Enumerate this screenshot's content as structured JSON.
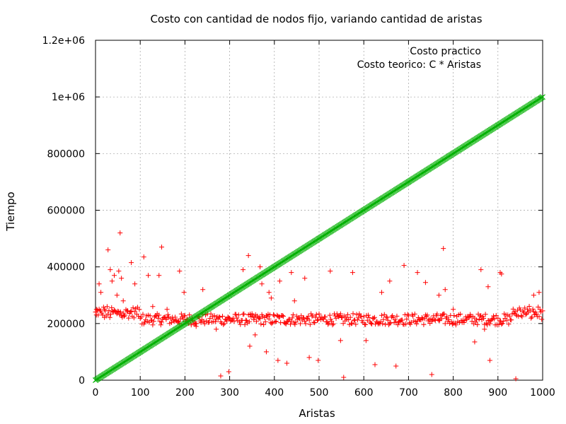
{
  "chart_data": {
    "type": "scatter",
    "title": "Costo con cantidad de nodos fijo, variando cantidad de aristas",
    "xlabel": "Aristas",
    "ylabel": "Tiempo",
    "xlim": [
      0,
      1000
    ],
    "ylim": [
      0,
      1200000
    ],
    "x_ticks": [
      0,
      100,
      200,
      300,
      400,
      500,
      600,
      700,
      800,
      900,
      1000
    ],
    "x_tick_labels": [
      "0",
      "100",
      "200",
      "300",
      "400",
      "500",
      "600",
      "700",
      "800",
      "900",
      "1000"
    ],
    "y_ticks": [
      0,
      200000,
      400000,
      600000,
      800000,
      1000000,
      1200000
    ],
    "y_tick_labels": [
      "0",
      "200000",
      "400000",
      "600000",
      "800000",
      "1e+06",
      "1.2e+06"
    ],
    "grid": true,
    "legend_position": "top-right",
    "series": [
      {
        "name": "Costo practico",
        "marker": "+",
        "color": "#ff0000",
        "baseline": 215000,
        "x": [
          2,
          8,
          12,
          20,
          28,
          33,
          37,
          42,
          48,
          52,
          55,
          58,
          62,
          80,
          88,
          108,
          118,
          128,
          142,
          148,
          160,
          188,
          198,
          225,
          240,
          270,
          280,
          298,
          330,
          342,
          345,
          357,
          368,
          372,
          382,
          388,
          393,
          408,
          412,
          428,
          438,
          445,
          468,
          478,
          498,
          525,
          548,
          555,
          575,
          605,
          625,
          640,
          658,
          672,
          690,
          720,
          738,
          752,
          768,
          778,
          782,
          800,
          848,
          862,
          870,
          878,
          882,
          905,
          908,
          940,
          980,
          992
        ],
        "y": [
          230000,
          340000,
          310000,
          250000,
          460000,
          390000,
          350000,
          370000,
          300000,
          385000,
          520000,
          360000,
          280000,
          415000,
          340000,
          435000,
          370000,
          260000,
          370000,
          470000,
          250000,
          385000,
          310000,
          190000,
          320000,
          180000,
          15000,
          30000,
          390000,
          440000,
          120000,
          160000,
          400000,
          340000,
          100000,
          310000,
          290000,
          70000,
          350000,
          60000,
          380000,
          280000,
          360000,
          80000,
          70000,
          385000,
          140000,
          10000,
          380000,
          140000,
          55000,
          310000,
          350000,
          50000,
          405000,
          380000,
          345000,
          20000,
          300000,
          465000,
          320000,
          250000,
          135000,
          390000,
          180000,
          330000,
          70000,
          380000,
          375000,
          5000,
          300000,
          310000
        ]
      },
      {
        "name": "Costo teorico: C * Aristas",
        "marker": "x",
        "color": "#00b000",
        "line_coefficient": 1000,
        "x": [
          0,
          100,
          200,
          300,
          400,
          500,
          600,
          700,
          800,
          900,
          1000
        ],
        "y": [
          0,
          100000,
          200000,
          300000,
          400000,
          500000,
          600000,
          700000,
          800000,
          900000,
          1000000
        ]
      }
    ]
  }
}
